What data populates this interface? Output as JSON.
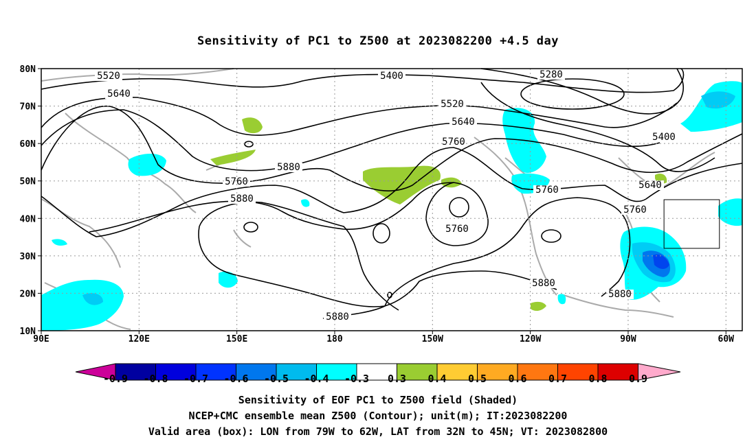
{
  "title": "Sensitivity of PC1 to Z500 at 2023082200 +4.5 day",
  "map": {
    "lat_labels": [
      "80N",
      "70N",
      "60N",
      "50N",
      "40N",
      "30N",
      "20N",
      "10N"
    ],
    "lon_labels": [
      "90E",
      "120E",
      "150E",
      "180",
      "150W",
      "120W",
      "90W",
      "60W"
    ],
    "contour_labels": [
      "5520",
      "5640",
      "5400",
      "5280",
      "5520",
      "5640",
      "5760",
      "5400",
      "5760",
      "5640",
      "5760",
      "5880",
      "5880",
      "5760",
      "5760",
      "5880",
      "5880",
      "5880"
    ],
    "valid_box": {
      "lon_min": -79,
      "lon_max": -62,
      "lat_min": 32,
      "lat_max": 45
    },
    "colors": {
      "neg_light": "#00ffff",
      "neg_mid": "#00ccf5",
      "neg_strong": "#0077ee",
      "neg_deep": "#0044ee",
      "pos_low": "#9acd32",
      "coast": "#aaaaaa"
    }
  },
  "colorbar": {
    "labels": [
      "-0.9",
      "-0.8",
      "-0.7",
      "-0.6",
      "-0.5",
      "-0.4",
      "-0.3",
      "0.3",
      "0.4",
      "0.5",
      "0.6",
      "0.7",
      "0.8",
      "0.9"
    ],
    "colors": [
      "#0000a0",
      "#0000dd",
      "#0033ff",
      "#0077ee",
      "#00bbee",
      "#00ffff",
      "#ffffff",
      "#9acd32",
      "#ffcc33",
      "#ffaa22",
      "#ff7711",
      "#ff4400",
      "#dd0000"
    ],
    "left_tip": "#cc0099",
    "right_tip": "#ffaacc"
  },
  "captions": {
    "line1": "Sensitivity of EOF PC1 to Z500 field (Shaded)",
    "line2": "NCEP+CMC ensemble mean Z500 (Contour); unit(m); IT:2023082200",
    "line3": "Valid area (box): LON from 79W to 62W, LAT from 32N to 45N; VT: 2023082800"
  }
}
